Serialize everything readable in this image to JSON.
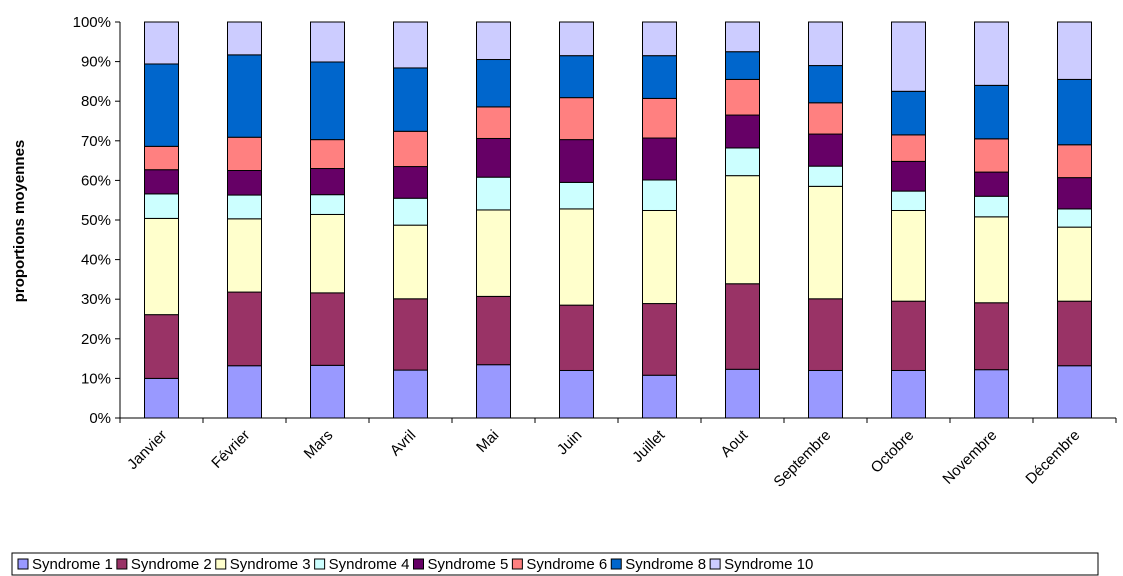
{
  "chart_data": {
    "type": "bar",
    "stacked": "percent",
    "ylabel": "proportions moyennes",
    "xlabel": "",
    "ylim": [
      0,
      100
    ],
    "yticks": [
      "0%",
      "10%",
      "20%",
      "30%",
      "40%",
      "50%",
      "60%",
      "70%",
      "80%",
      "90%",
      "100%"
    ],
    "legend_position": "bottom",
    "grid": false,
    "categories": [
      "Janvier",
      "Février",
      "Mars",
      "Avril",
      "Mai",
      "Juin",
      "Juillet",
      "Aout",
      "Septembre",
      "Octobre",
      "Novembre",
      "Décembre"
    ],
    "series": [
      {
        "name": "Syndrome 1",
        "color": "#9999FF",
        "values": [
          10.0,
          13.2,
          13.3,
          12.1,
          13.5,
          12.0,
          10.8,
          12.3,
          12.0,
          12.0,
          12.2,
          13.2
        ]
      },
      {
        "name": "Syndrome 2",
        "color": "#993366",
        "values": [
          16.1,
          18.6,
          18.3,
          18.0,
          17.3,
          16.5,
          18.1,
          21.6,
          18.1,
          17.5,
          16.9,
          16.3
        ]
      },
      {
        "name": "Syndrome 3",
        "color": "#FFFFCC",
        "values": [
          24.3,
          18.5,
          19.8,
          18.6,
          21.9,
          24.3,
          23.5,
          27.3,
          28.4,
          22.9,
          21.7,
          18.7
        ]
      },
      {
        "name": "Syndrome 4",
        "color": "#CCFFFF",
        "values": [
          6.2,
          6.0,
          5.0,
          6.8,
          8.3,
          6.7,
          7.7,
          7.0,
          5.1,
          4.9,
          5.2,
          4.6
        ]
      },
      {
        "name": "Syndrome 5",
        "color": "#660066",
        "values": [
          6.1,
          6.2,
          6.6,
          8.0,
          9.8,
          10.8,
          10.6,
          8.3,
          8.1,
          7.5,
          6.1,
          7.9
        ]
      },
      {
        "name": "Syndrome 6",
        "color": "#FF8080",
        "values": [
          5.9,
          8.4,
          7.3,
          8.9,
          8.0,
          10.6,
          10.0,
          9.0,
          7.9,
          6.7,
          8.4,
          8.3
        ]
      },
      {
        "name": "Syndrome 8",
        "color": "#0066CC",
        "values": [
          20.8,
          20.8,
          19.6,
          16.0,
          12.0,
          10.6,
          10.8,
          7.0,
          9.4,
          11.0,
          13.5,
          16.5
        ]
      },
      {
        "name": "Syndrome 10",
        "color": "#CCCCFF",
        "values": [
          10.6,
          8.3,
          10.1,
          11.6,
          9.5,
          8.5,
          8.5,
          7.5,
          11.0,
          17.5,
          16.0,
          14.5
        ]
      }
    ]
  }
}
